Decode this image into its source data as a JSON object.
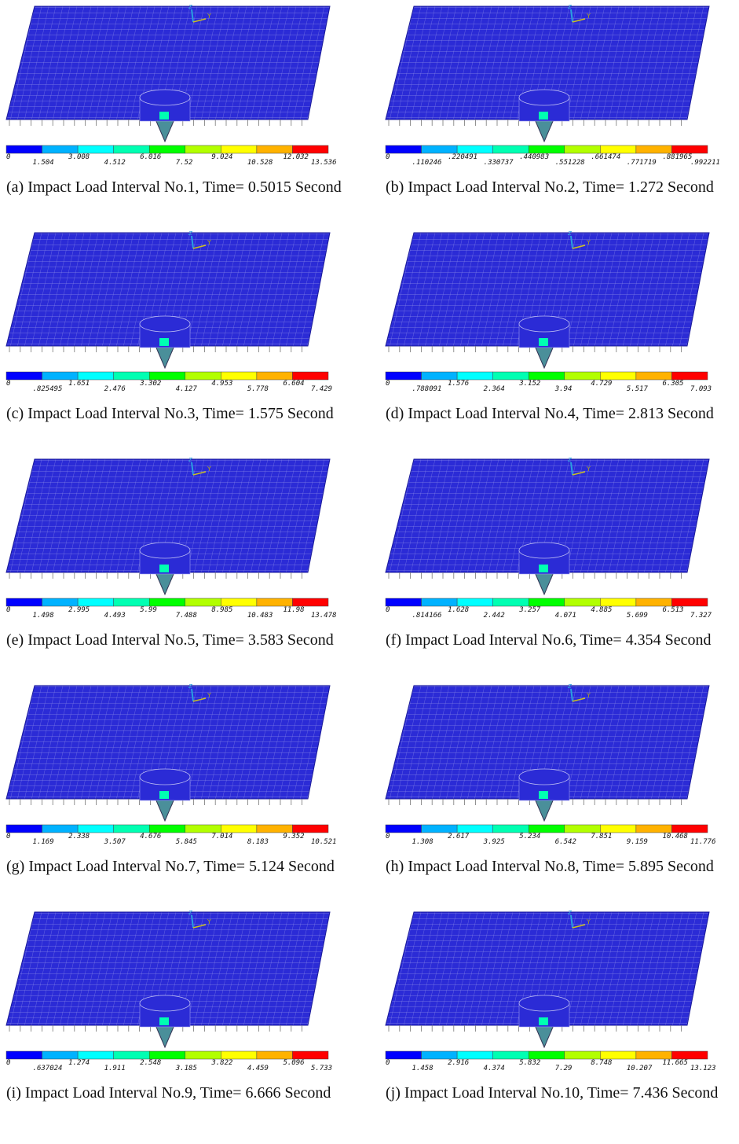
{
  "panels": [
    {
      "caption": "(a) Impact Load Interval No.1, Time= 0.5015 Second",
      "triad": [
        "z",
        "Y"
      ],
      "legend": [
        "0",
        "1.504",
        "3.008",
        "4.512",
        "6.016",
        "7.52",
        "9.024",
        "10.528",
        "12.032",
        "13.536"
      ]
    },
    {
      "caption": "(b) Impact Load Interval No.2, Time= 1.272 Second",
      "triad": [
        "z",
        "Y"
      ],
      "legend": [
        "0",
        ".110246",
        ".220491",
        ".330737",
        ".440983",
        ".551228",
        ".661474",
        ".771719",
        ".881965",
        ".992211"
      ]
    },
    {
      "caption": "(c) Impact Load Interval No.3, Time= 1.575 Second",
      "triad": [
        "z",
        "Y"
      ],
      "legend": [
        "0",
        ".825495",
        "1.651",
        "2.476",
        "3.302",
        "4.127",
        "4.953",
        "5.778",
        "6.604",
        "7.429"
      ]
    },
    {
      "caption": "(d) Impact Load Interval No.4, Time= 2.813 Second",
      "triad": [
        "z",
        "Y"
      ],
      "legend": [
        "0",
        ".788091",
        "1.576",
        "2.364",
        "3.152",
        "3.94",
        "4.729",
        "5.517",
        "6.305",
        "7.093"
      ]
    },
    {
      "caption": "(e) Impact Load Interval No.5, Time= 3.583 Second",
      "triad": [
        "z",
        "Y"
      ],
      "legend": [
        "0",
        "1.498",
        "2.995",
        "4.493",
        "5.99",
        "7.488",
        "8.985",
        "10.483",
        "11.98",
        "13.478"
      ]
    },
    {
      "caption": "(f) Impact Load Interval No.6, Time= 4.354 Second",
      "triad": [
        "z",
        "Y"
      ],
      "legend": [
        "0",
        ".814166",
        "1.628",
        "2.442",
        "3.257",
        "4.071",
        "4.885",
        "5.699",
        "6.513",
        "7.327"
      ]
    },
    {
      "caption": "(g) Impact Load Interval No.7, Time= 5.124 Second",
      "triad": [
        "z",
        "Y"
      ],
      "legend": [
        "0",
        "1.169",
        "2.338",
        "3.507",
        "4.676",
        "5.845",
        "7.014",
        "8.183",
        "9.352",
        "10.521"
      ]
    },
    {
      "caption": "(h) Impact Load Interval No.8, Time= 5.895 Second",
      "triad": [
        "z",
        "Y"
      ],
      "legend": [
        "0",
        "1.308",
        "2.617",
        "3.925",
        "5.234",
        "6.542",
        "7.851",
        "9.159",
        "10.468",
        "11.776"
      ]
    },
    {
      "caption": "(i) Impact Load Interval No.9, Time= 6.666 Second",
      "triad": [
        "z",
        "Y"
      ],
      "legend": [
        "0",
        ".637024",
        "1.274",
        "1.911",
        "2.548",
        "3.185",
        "3.822",
        "4.459",
        "5.096",
        "5.733"
      ]
    },
    {
      "caption": "(j) Impact Load Interval No.10, Time= 7.436 Second",
      "triad": [
        "z",
        "Y"
      ],
      "legend": [
        "0",
        "1.458",
        "2.916",
        "4.374",
        "5.832",
        "7.29",
        "8.748",
        "10.207",
        "11.665",
        "13.123"
      ]
    }
  ]
}
